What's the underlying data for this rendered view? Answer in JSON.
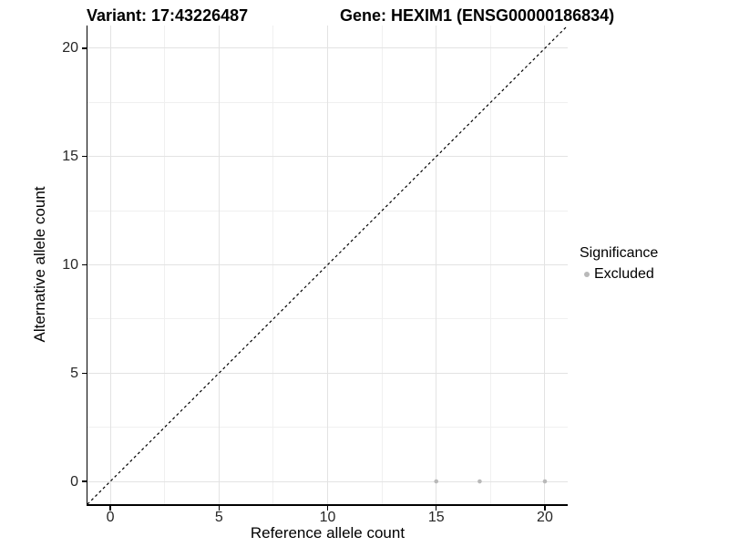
{
  "header": {
    "variant_title": "Variant: 17:43226487",
    "gene_title": "Gene: HEXIM1 (ENSG00000186834)"
  },
  "chart_data": {
    "type": "scatter",
    "title": "Variant: 17:43226487 / Gene: HEXIM1 (ENSG00000186834)",
    "xlabel": "Reference allele count",
    "ylabel": "Alternative allele count",
    "xlim": [
      -1.05,
      21.05
    ],
    "ylim": [
      -1.05,
      21.05
    ],
    "x_ticks": [
      0,
      5,
      10,
      15,
      20
    ],
    "y_ticks": [
      0,
      5,
      10,
      15,
      20
    ],
    "x_minor": [
      2.5,
      7.5,
      12.5,
      17.5
    ],
    "y_minor": [
      2.5,
      7.5,
      12.5,
      17.5
    ],
    "grid": true,
    "series": [
      {
        "name": "Excluded",
        "color": "#b9b9b9",
        "points": [
          [
            15,
            0
          ],
          [
            17,
            0
          ],
          [
            20,
            0
          ]
        ]
      }
    ],
    "identity_line": {
      "style": "dashed",
      "color": "#000000",
      "from": [
        -1.05,
        -1.05
      ],
      "to": [
        21.05,
        21.05
      ]
    },
    "legend": {
      "position": "right",
      "title": "Significance",
      "entries": [
        {
          "label": "Excluded",
          "color": "#b9b9b9"
        }
      ]
    }
  }
}
